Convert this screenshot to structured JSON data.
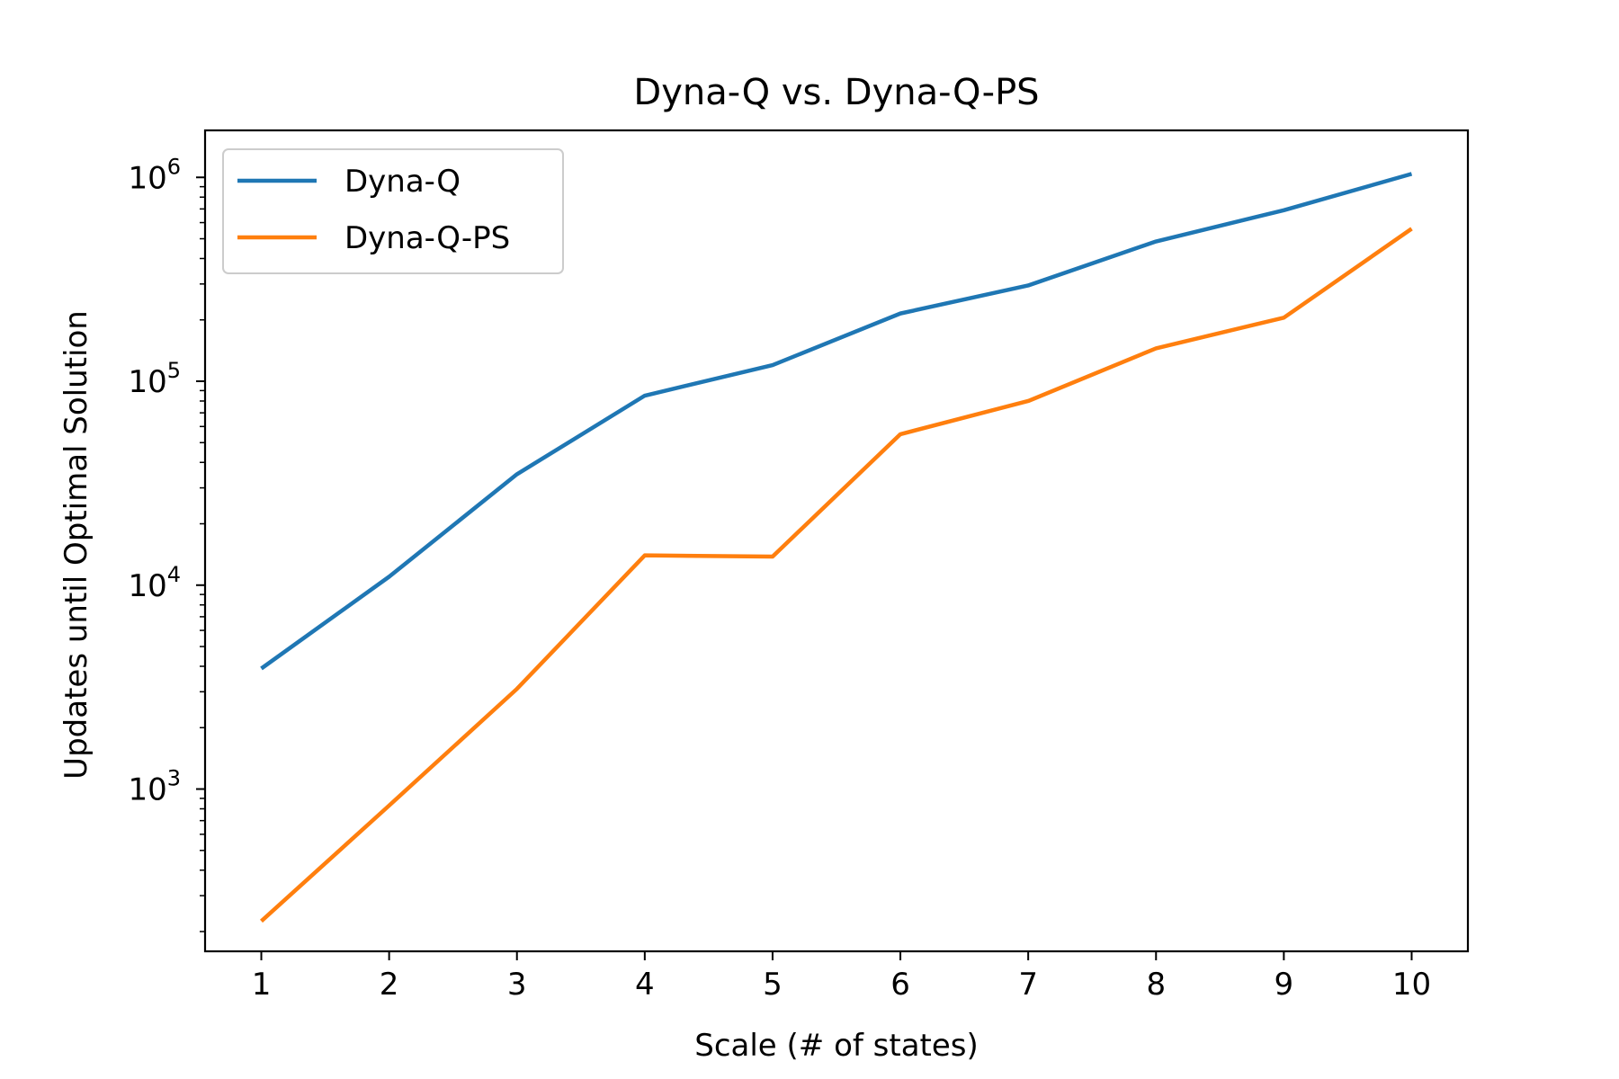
{
  "chart_data": {
    "type": "line",
    "title": "Dyna-Q vs. Dyna-Q-PS",
    "xlabel": "Scale (# of states)",
    "ylabel": "Updates until Optimal Solution",
    "x": [
      1,
      2,
      3,
      4,
      5,
      6,
      7,
      8,
      9,
      10
    ],
    "x_ticks": [
      "1",
      "2",
      "3",
      "4",
      "5",
      "6",
      "7",
      "8",
      "9",
      "10"
    ],
    "y_scale": "log",
    "y_ticks": [
      {
        "value": 1000,
        "base": "10",
        "exp": "3"
      },
      {
        "value": 10000,
        "base": "10",
        "exp": "4"
      },
      {
        "value": 100000,
        "base": "10",
        "exp": "5"
      },
      {
        "value": 1000000,
        "base": "10",
        "exp": "6"
      }
    ],
    "xlim": [
      0.56,
      10.44
    ],
    "ylim": [
      160,
      1700000
    ],
    "grid": false,
    "legend_position": "upper-left",
    "series": [
      {
        "name": "Dyna-Q",
        "color": "#1f77b4",
        "values": [
          3900,
          11000,
          35000,
          85000,
          120000,
          215000,
          295000,
          485000,
          690000,
          1040000
        ]
      },
      {
        "name": "Dyna-Q-PS",
        "color": "#ff7f0e",
        "values": [
          225,
          830,
          3100,
          14000,
          13800,
          55000,
          80000,
          145000,
          205000,
          560000
        ]
      }
    ]
  }
}
